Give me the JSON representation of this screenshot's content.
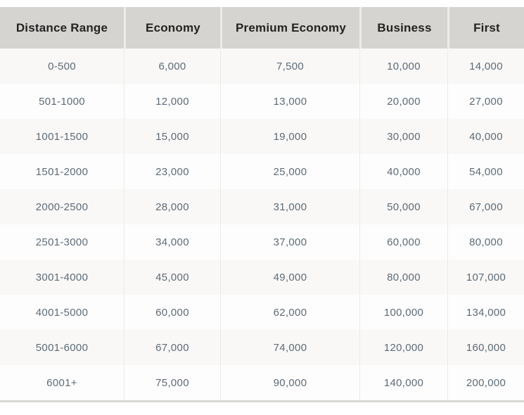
{
  "colors": {
    "header_bg": "#d6d4d0",
    "header_text": "#232323",
    "header_divider": "#edecea",
    "body_text": "#5d6b77",
    "row_odd_bg": "#f9f8f7",
    "row_even_bg": "#fdfdfd",
    "divider": "#ebeae8",
    "bottom_border": "#d9d7d4"
  },
  "chart_data": {
    "type": "table",
    "columns": [
      "Distance Range",
      "Economy",
      "Premium Economy",
      "Business",
      "First"
    ],
    "rows": [
      [
        "0-500",
        "6,000",
        "7,500",
        "10,000",
        "14,000"
      ],
      [
        "501-1000",
        "12,000",
        "13,000",
        "20,000",
        "27,000"
      ],
      [
        "1001-1500",
        "15,000",
        "19,000",
        "30,000",
        "40,000"
      ],
      [
        "1501-2000",
        "23,000",
        "25,000",
        "40,000",
        "54,000"
      ],
      [
        "2000-2500",
        "28,000",
        "31,000",
        "50,000",
        "67,000"
      ],
      [
        "2501-3000",
        "34,000",
        "37,000",
        "60,000",
        "80,000"
      ],
      [
        "3001-4000",
        "45,000",
        "49,000",
        "80,000",
        "107,000"
      ],
      [
        "4001-5000",
        "60,000",
        "62,000",
        "100,000",
        "134,000"
      ],
      [
        "5001-6000",
        "67,000",
        "74,000",
        "120,000",
        "160,000"
      ],
      [
        "6001+",
        "75,000",
        "90,000",
        "140,000",
        "200,000"
      ]
    ]
  }
}
